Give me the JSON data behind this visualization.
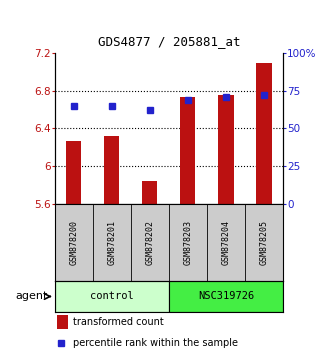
{
  "title": "GDS4877 / 205881_at",
  "samples": [
    "GSM878200",
    "GSM878201",
    "GSM878202",
    "GSM878203",
    "GSM878204",
    "GSM878205"
  ],
  "bar_values": [
    6.27,
    6.32,
    5.84,
    6.73,
    6.75,
    7.09
  ],
  "dot_values": [
    65,
    65,
    62,
    69,
    71,
    72
  ],
  "ylim_left": [
    5.6,
    7.2
  ],
  "ylim_right": [
    0,
    100
  ],
  "yticks_left": [
    5.6,
    6.0,
    6.4,
    6.8,
    7.2
  ],
  "yticks_right": [
    0,
    25,
    50,
    75,
    100
  ],
  "yticklabels_left": [
    "5.6",
    "6",
    "6.4",
    "6.8",
    "7.2"
  ],
  "yticklabels_right": [
    "0",
    "25",
    "50",
    "75",
    "100%"
  ],
  "bar_color": "#bb1111",
  "dot_color": "#2222cc",
  "bar_base": 5.6,
  "groups": [
    {
      "label": "control",
      "indices": [
        0,
        1,
        2
      ],
      "color": "#ccffcc"
    },
    {
      "label": "NSC319726",
      "indices": [
        3,
        4,
        5
      ],
      "color": "#44ee44"
    }
  ],
  "agent_label": "agent",
  "legend_bar_label": "transformed count",
  "legend_dot_label": "percentile rank within the sample",
  "background_color": "#ffffff",
  "label_area_color": "#cccccc",
  "dotgrid_lines": [
    6.0,
    6.4,
    6.8
  ]
}
